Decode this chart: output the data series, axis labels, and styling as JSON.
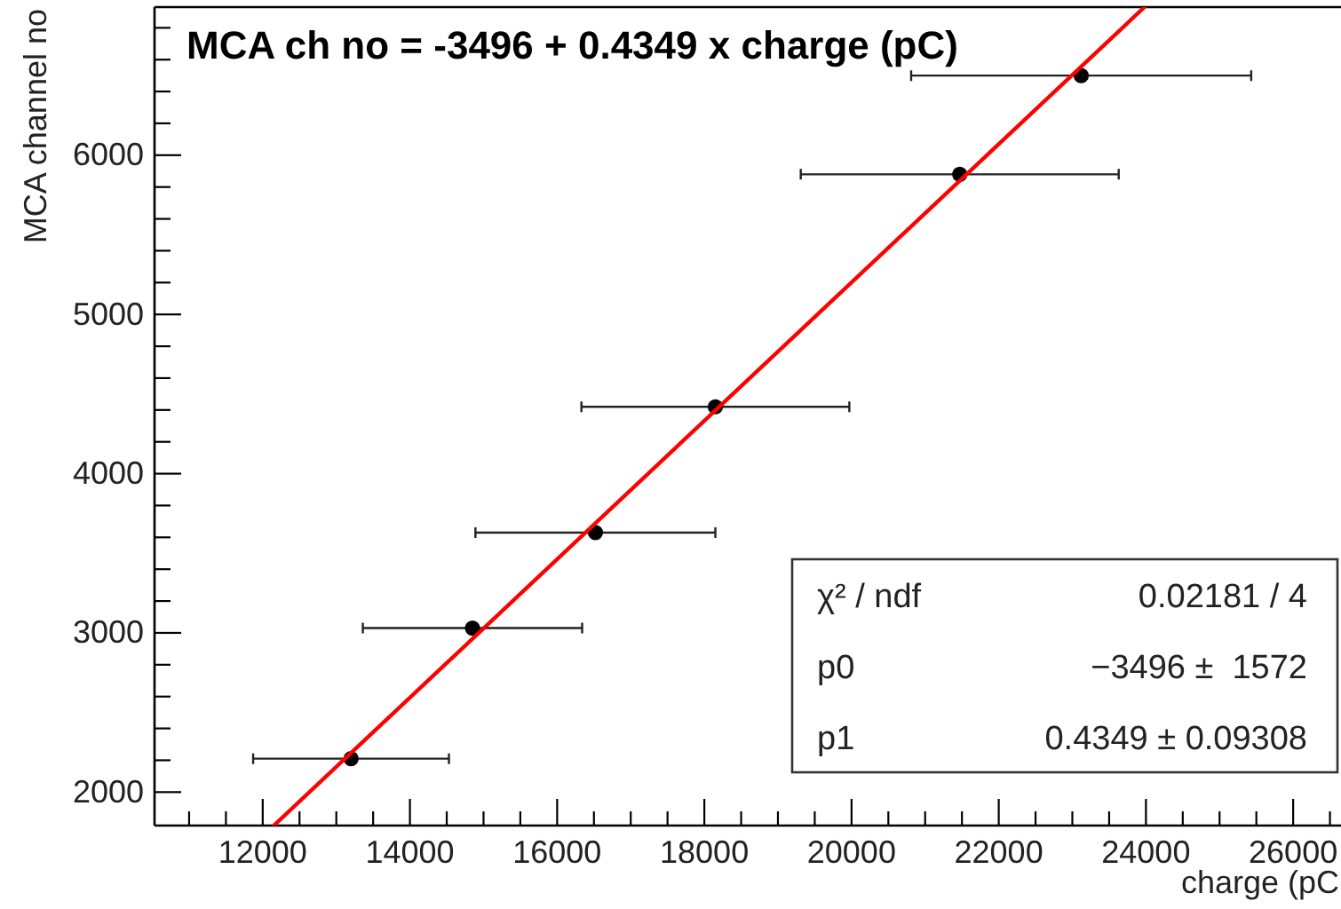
{
  "chart_data": {
    "type": "scatter",
    "title": "MCA ch no = -3496 + 0.4349 x charge (pC)",
    "xlabel": "charge (pC",
    "ylabel": "MCA channel no",
    "xlim": [
      10530,
      26650
    ],
    "ylim": [
      1790,
      6930
    ],
    "xticks": [
      {
        "value": 11000,
        "label": null
      },
      {
        "value": 11500,
        "label": null
      },
      12000,
      {
        "value": 12500,
        "label": null
      },
      {
        "value": 13000,
        "label": null
      },
      {
        "value": 13500,
        "label": null
      },
      14000,
      {
        "value": 14500,
        "label": null
      },
      {
        "value": 15000,
        "label": null
      },
      {
        "value": 15500,
        "label": null
      },
      16000,
      {
        "value": 16500,
        "label": null
      },
      {
        "value": 17000,
        "label": null
      },
      {
        "value": 17500,
        "label": null
      },
      18000,
      {
        "value": 18500,
        "label": null
      },
      {
        "value": 19000,
        "label": null
      },
      {
        "value": 19500,
        "label": null
      },
      20000,
      {
        "value": 20500,
        "label": null
      },
      {
        "value": 21000,
        "label": null
      },
      {
        "value": 21500,
        "label": null
      },
      22000,
      {
        "value": 22500,
        "label": null
      },
      {
        "value": 23000,
        "label": null
      },
      {
        "value": 23500,
        "label": null
      },
      24000,
      {
        "value": 24500,
        "label": null
      },
      {
        "value": 25000,
        "label": null
      },
      {
        "value": 25500,
        "label": null
      },
      26000,
      {
        "value": 26500,
        "label": null
      }
    ],
    "yticks": [
      2000,
      {
        "value": 2200,
        "label": null
      },
      {
        "value": 2400,
        "label": null
      },
      {
        "value": 2600,
        "label": null
      },
      {
        "value": 2800,
        "label": null
      },
      3000,
      {
        "value": 3200,
        "label": null
      },
      {
        "value": 3400,
        "label": null
      },
      {
        "value": 3600,
        "label": null
      },
      {
        "value": 3800,
        "label": null
      },
      4000,
      {
        "value": 4200,
        "label": null
      },
      {
        "value": 4400,
        "label": null
      },
      {
        "value": 4600,
        "label": null
      },
      {
        "value": 4800,
        "label": null
      },
      5000,
      {
        "value": 5200,
        "label": null
      },
      {
        "value": 5400,
        "label": null
      },
      {
        "value": 5600,
        "label": null
      },
      {
        "value": 5800,
        "label": null
      },
      6000,
      {
        "value": 6200,
        "label": null
      },
      {
        "value": 6400,
        "label": null
      },
      {
        "value": 6600,
        "label": null
      },
      {
        "value": 6800,
        "label": null
      }
    ],
    "marker": "circle",
    "series": [
      {
        "type": "scatter",
        "color": "#000000",
        "x": [
          13200,
          14850,
          16520,
          18150,
          21470,
          23120
        ],
        "values": [
          2210,
          3030,
          3630,
          4420,
          5880,
          6500
        ],
        "xerrors": [
          1330,
          1490,
          1630,
          1820,
          2160,
          2310
        ]
      },
      {
        "type": "line",
        "color": "#ff0000",
        "marker": "none",
        "x": [
          12150,
          23980
        ],
        "values": [
          1790,
          6930
        ]
      }
    ],
    "annotations": [
      "χ² / ndf",
      "0.02181 / 4",
      "p0",
      "−3496 ±  1572",
      "p1",
      "0.4349 ± 0.09308"
    ]
  }
}
